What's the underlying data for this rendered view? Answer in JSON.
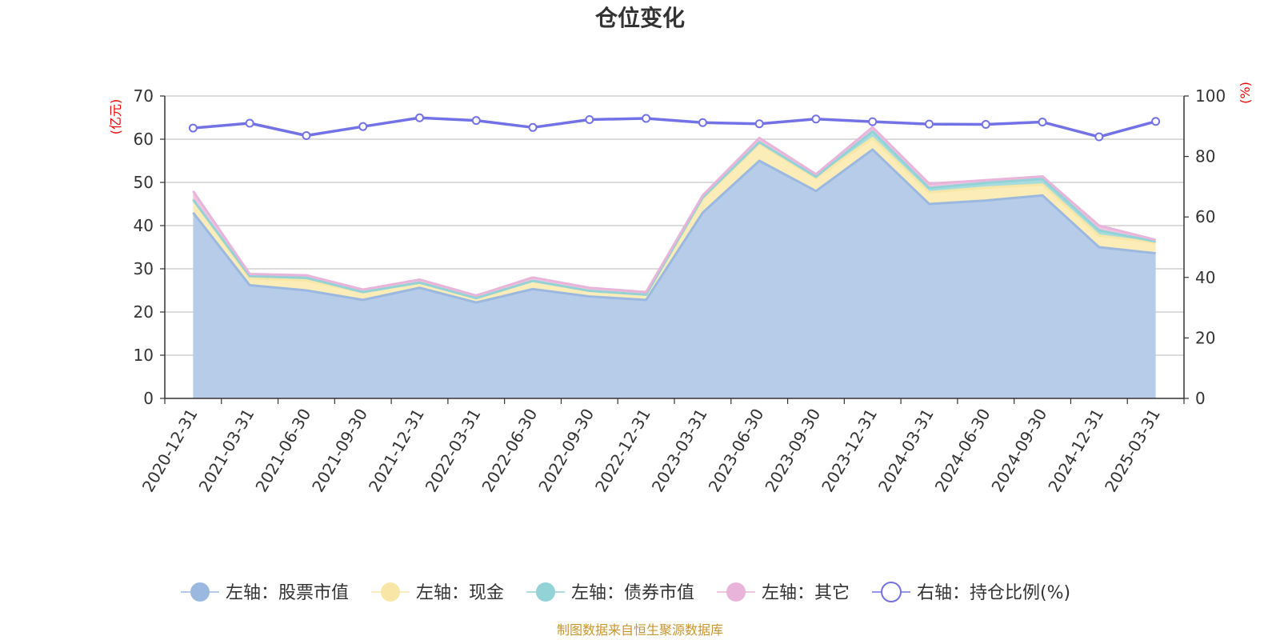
{
  "chart_data": {
    "type": "area",
    "title": "仓位变化",
    "left_axis_unit": "(亿元)",
    "right_axis_unit": "(%)",
    "categories": [
      "2020-12-31",
      "2021-03-31",
      "2021-06-30",
      "2021-09-30",
      "2021-12-31",
      "2022-03-31",
      "2022-06-30",
      "2022-09-30",
      "2022-12-31",
      "2023-03-31",
      "2023-06-30",
      "2023-09-30",
      "2023-12-31",
      "2024-03-31",
      "2024-06-30",
      "2024-09-30",
      "2024-12-31",
      "2025-03-31"
    ],
    "left_ylim": [
      0,
      70
    ],
    "left_yticks": [
      0,
      10,
      20,
      30,
      40,
      50,
      60,
      70
    ],
    "right_ylim": [
      0,
      100
    ],
    "right_yticks": [
      0,
      20,
      40,
      60,
      80,
      100
    ],
    "grid": true,
    "legend_position": "bottom",
    "series": [
      {
        "name": "左轴：股票市值",
        "axis": "left",
        "stacked": true,
        "color": "#9bb8e0",
        "fill": "#b7cce9",
        "values": [
          43.0,
          26.2,
          25.0,
          22.8,
          25.6,
          22.2,
          25.3,
          23.6,
          22.8,
          43.0,
          55.0,
          48.0,
          57.6,
          45.0,
          45.8,
          47.0,
          35.0,
          33.6
        ]
      },
      {
        "name": "左轴：现金",
        "axis": "left",
        "stacked": true,
        "color": "#f8e6a6",
        "fill": "#fbecb8",
        "values": [
          3.0,
          1.6,
          2.3,
          1.8,
          1.2,
          1.0,
          1.9,
          1.3,
          1.2,
          3.2,
          4.0,
          3.0,
          2.7,
          2.7,
          3.0,
          2.5,
          2.7,
          2.4
        ]
      },
      {
        "name": "左轴：债券市值",
        "axis": "left",
        "stacked": true,
        "color": "#93d2d6",
        "fill": "#a6dcde",
        "values": [
          0.0,
          0.5,
          0.6,
          0.0,
          0.0,
          0.0,
          0.0,
          0.0,
          0.0,
          0.3,
          0.3,
          0.3,
          1.5,
          1.0,
          1.1,
          1.3,
          1.2,
          0.3
        ]
      },
      {
        "name": "左轴：其它",
        "axis": "left",
        "stacked": true,
        "color": "#e8b4d9",
        "fill": "#efc4e1",
        "values": [
          2.0,
          0.5,
          0.6,
          0.6,
          0.7,
          0.6,
          0.8,
          0.7,
          0.6,
          0.5,
          1.0,
          0.6,
          1.0,
          1.0,
          0.6,
          0.6,
          1.1,
          0.4
        ]
      },
      {
        "name": "右轴：持仓比例(%)",
        "axis": "right",
        "type": "line",
        "color": "#7272e6",
        "values": [
          89.4,
          91.0,
          86.9,
          89.9,
          92.8,
          91.9,
          89.6,
          92.2,
          92.6,
          91.2,
          90.8,
          92.4,
          91.5,
          90.7,
          90.6,
          91.4,
          86.5,
          91.6
        ]
      }
    ]
  },
  "source_note": "制图数据来自恒生聚源数据库"
}
